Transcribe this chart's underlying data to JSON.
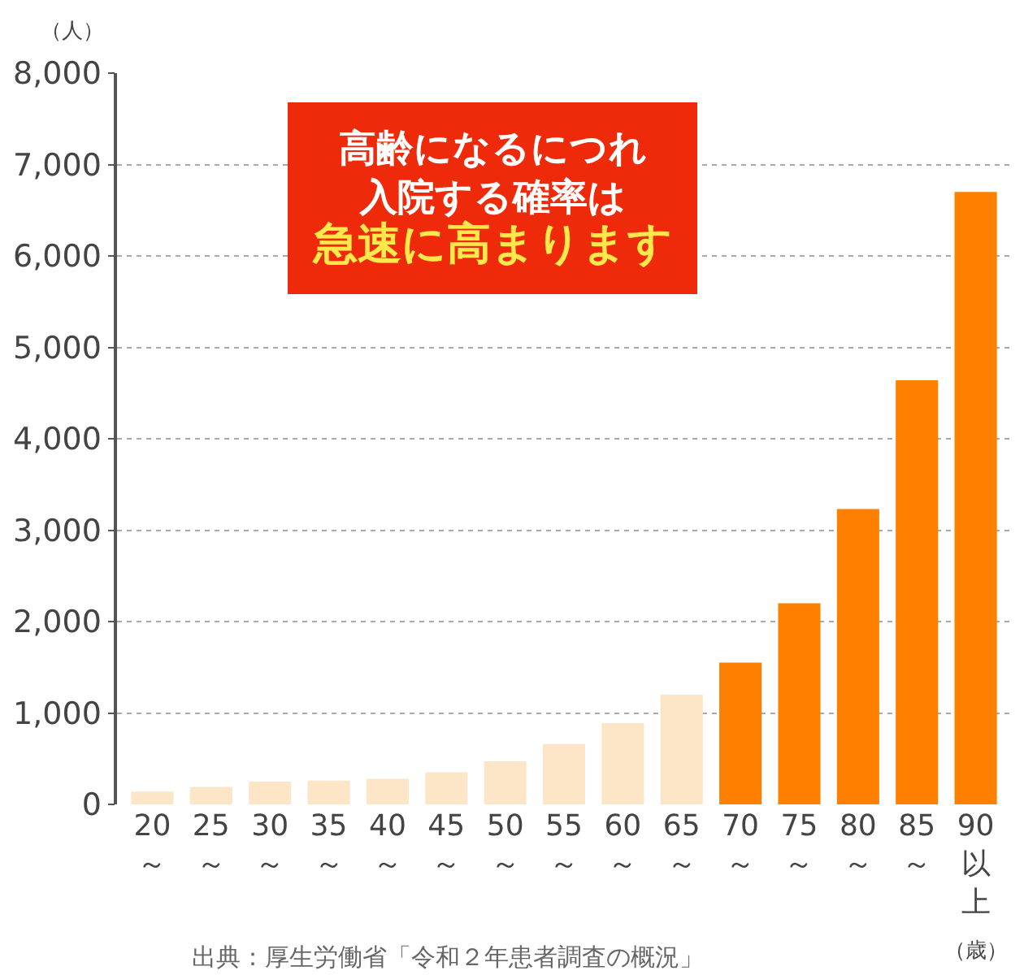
{
  "chart_data": {
    "type": "bar",
    "categories": [
      "20～",
      "25～",
      "30～",
      "35～",
      "40～",
      "45～",
      "50～",
      "55～",
      "60～",
      "65～",
      "70～",
      "75～",
      "80～",
      "85～",
      "90以上"
    ],
    "values": [
      140,
      190,
      250,
      260,
      280,
      350,
      470,
      660,
      890,
      1200,
      1550,
      2200,
      3230,
      4640,
      6700
    ],
    "colors": [
      "#fde5c8",
      "#fde5c8",
      "#fde5c8",
      "#fde5c8",
      "#fde5c8",
      "#fde5c8",
      "#fde5c8",
      "#fde5c8",
      "#fde5c8",
      "#fde5c8",
      "#ff8000",
      "#ff8000",
      "#ff8000",
      "#ff8000",
      "#ff8000"
    ],
    "ylabel": "（人）",
    "xlabel": "（歳）",
    "ylim": [
      0,
      8000
    ],
    "yticks": [
      {
        "value": 0,
        "label": "0"
      },
      {
        "value": 1000,
        "label": "1,000"
      },
      {
        "value": 2000,
        "label": "2,000"
      },
      {
        "value": 3000,
        "label": "3,000"
      },
      {
        "value": 4000,
        "label": "4,000"
      },
      {
        "value": 5000,
        "label": "5,000"
      },
      {
        "value": 6000,
        "label": "6,000"
      },
      {
        "value": 7000,
        "label": "7,000"
      },
      {
        "value": 8000,
        "label": "8,000"
      }
    ],
    "grid": "y",
    "annotations": [
      "高齢になるにつれ",
      "入院する確率は",
      "急速に高まります",
      "出典：厚生労働省「令和２年患者調査の概況」"
    ]
  }
}
